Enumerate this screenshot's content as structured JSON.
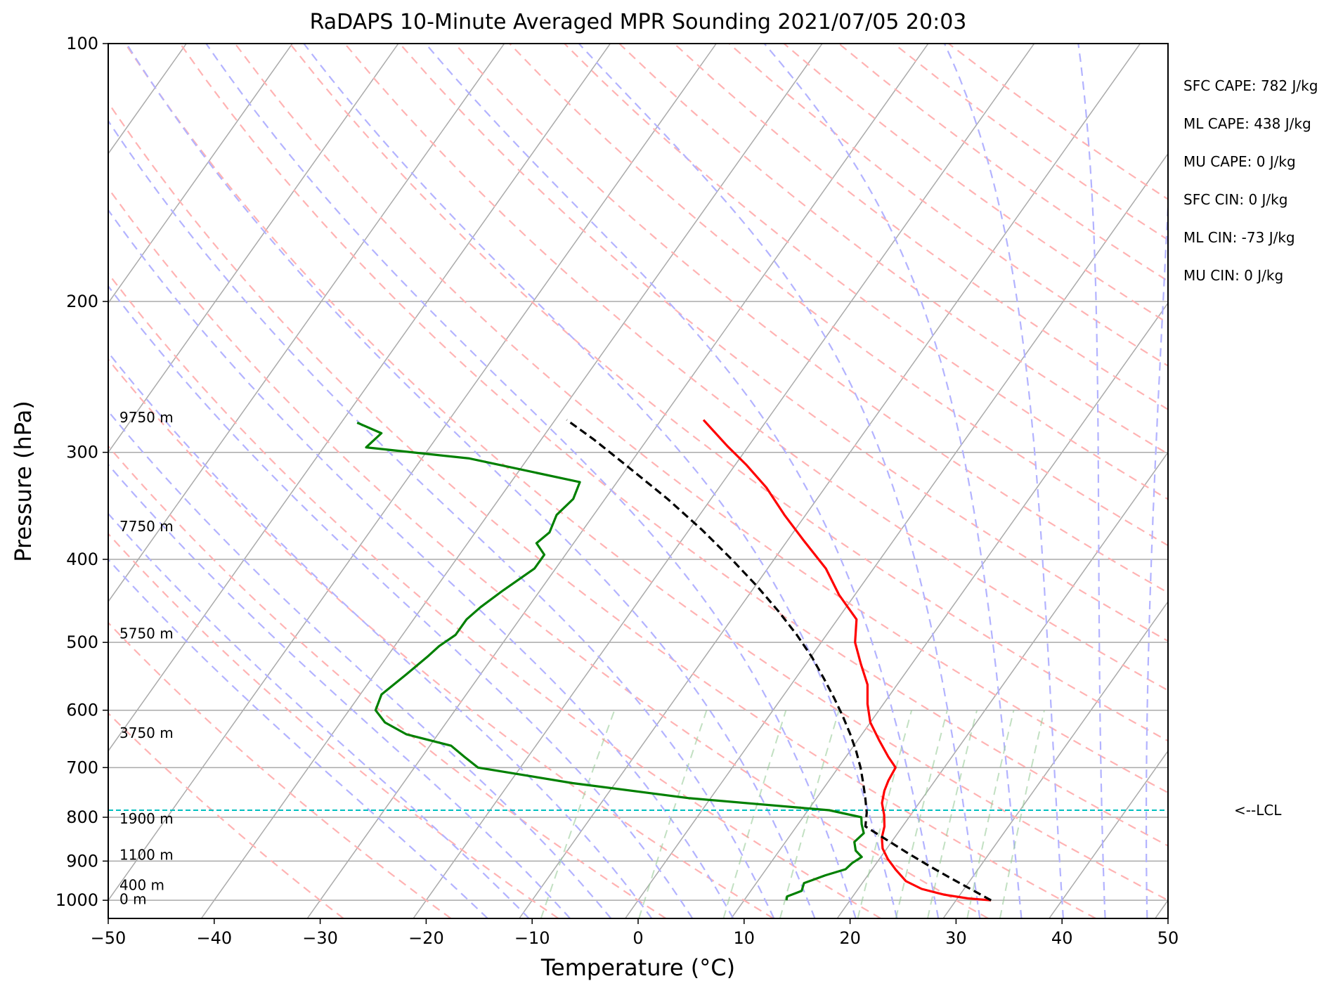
{
  "chart_data": {
    "type": "skew-t log-p sounding",
    "title": "RaDAPS 10-Minute Averaged MPR Sounding 2021/07/05 20:03",
    "xlabel": "Temperature (°C)",
    "ylabel": "Pressure (hPa)",
    "xlim": [
      -50,
      50
    ],
    "ylim": [
      1050,
      100
    ],
    "y_scale": "log",
    "x_ticks": [
      -50,
      -40,
      -30,
      -20,
      -10,
      0,
      10,
      20,
      30,
      40,
      50
    ],
    "y_ticks": [
      100,
      200,
      300,
      400,
      500,
      600,
      700,
      800,
      900,
      1000
    ],
    "grid": true,
    "height_labels": [
      {
        "text": "9750 m",
        "pressure": 273
      },
      {
        "text": "7750 m",
        "pressure": 366
      },
      {
        "text": "5750 m",
        "pressure": 488
      },
      {
        "text": "3750 m",
        "pressure": 638
      },
      {
        "text": "1900 m",
        "pressure": 803
      },
      {
        "text": "1100 m",
        "pressure": 885
      },
      {
        "text": "400 m",
        "pressure": 960
      },
      {
        "text": "0 m",
        "pressure": 997
      }
    ],
    "series": [
      {
        "kind": "temperature",
        "color": "#ff0000",
        "points": [
          [
            1000,
            33.3
          ],
          [
            995,
            31.0
          ],
          [
            985,
            28.5
          ],
          [
            970,
            26.0
          ],
          [
            950,
            24.0
          ],
          [
            920,
            22.2
          ],
          [
            895,
            20.8
          ],
          [
            870,
            19.6
          ],
          [
            845,
            18.8
          ],
          [
            820,
            18.3
          ],
          [
            795,
            17.5
          ],
          [
            770,
            16.5
          ],
          [
            745,
            15.9
          ],
          [
            725,
            15.6
          ],
          [
            700,
            15.4
          ],
          [
            680,
            14.0
          ],
          [
            650,
            12.0
          ],
          [
            620,
            10.0
          ],
          [
            590,
            8.5
          ],
          [
            560,
            7.2
          ],
          [
            530,
            5.2
          ],
          [
            500,
            3.2
          ],
          [
            470,
            1.8
          ],
          [
            440,
            -1.5
          ],
          [
            410,
            -4.5
          ],
          [
            380,
            -8.5
          ],
          [
            355,
            -12.0
          ],
          [
            330,
            -15.5
          ],
          [
            310,
            -19.0
          ],
          [
            295,
            -22.0
          ],
          [
            275,
            -26.0
          ]
        ]
      },
      {
        "kind": "dewpoint",
        "color": "#008000",
        "points": [
          [
            1000,
            14.0
          ],
          [
            990,
            13.8
          ],
          [
            975,
            14.8
          ],
          [
            955,
            14.5
          ],
          [
            935,
            16.0
          ],
          [
            920,
            17.5
          ],
          [
            905,
            17.7
          ],
          [
            890,
            18.2
          ],
          [
            875,
            17.2
          ],
          [
            855,
            16.5
          ],
          [
            835,
            16.8
          ],
          [
            815,
            16.0
          ],
          [
            800,
            15.5
          ],
          [
            785,
            12.0
          ],
          [
            760,
            -2.0
          ],
          [
            730,
            -14.0
          ],
          [
            700,
            -24.0
          ],
          [
            680,
            -26.0
          ],
          [
            660,
            -28.0
          ],
          [
            640,
            -33.0
          ],
          [
            620,
            -35.8
          ],
          [
            600,
            -37.5
          ],
          [
            575,
            -38.0
          ],
          [
            545,
            -37.0
          ],
          [
            520,
            -36.2
          ],
          [
            505,
            -35.8
          ],
          [
            490,
            -35.0
          ],
          [
            470,
            -35.0
          ],
          [
            455,
            -34.5
          ],
          [
            435,
            -33.5
          ],
          [
            410,
            -32.0
          ],
          [
            395,
            -32.0
          ],
          [
            383,
            -33.5
          ],
          [
            372,
            -33.0
          ],
          [
            355,
            -33.5
          ],
          [
            340,
            -33.0
          ],
          [
            325,
            -33.5
          ],
          [
            305,
            -45.5
          ],
          [
            296,
            -56.0
          ],
          [
            285,
            -55.5
          ],
          [
            277,
            -58.5
          ]
        ]
      },
      {
        "kind": "parcel",
        "color": "#000000",
        "points": [
          [
            1000,
            33.3
          ],
          [
            970,
            30.6
          ],
          [
            940,
            27.8
          ],
          [
            910,
            25.0
          ],
          [
            880,
            22.2
          ],
          [
            850,
            19.4
          ],
          [
            820,
            16.5
          ],
          [
            790,
            15.7
          ],
          [
            760,
            14.6
          ],
          [
            730,
            13.4
          ],
          [
            700,
            12.1
          ],
          [
            670,
            10.6
          ],
          [
            640,
            8.9
          ],
          [
            610,
            7.0
          ],
          [
            580,
            4.9
          ],
          [
            550,
            2.6
          ],
          [
            520,
            0.1
          ],
          [
            490,
            -2.8
          ],
          [
            460,
            -6.1
          ],
          [
            430,
            -9.8
          ],
          [
            400,
            -14.0
          ],
          [
            370,
            -18.7
          ],
          [
            340,
            -24.1
          ],
          [
            310,
            -30.4
          ],
          [
            290,
            -35.0
          ],
          [
            275,
            -38.9
          ]
        ]
      }
    ],
    "lcl": {
      "pressure": 785,
      "label": "<--LCL"
    },
    "stats": [
      "SFC CAPE: 782 J/kg",
      "ML CAPE: 438 J/kg",
      "MU CAPE: 0 J/kg",
      "SFC CIN: 0 J/kg",
      "ML CIN: -73 J/kg",
      "MU CIN: 0 J/kg"
    ],
    "background_lines": {
      "isotherm_color": "#aaaaaa",
      "dry_adiabat_color": "#ffb3b3",
      "moist_adiabat_color": "#b3b3ff",
      "mixing_ratio_color": "#99cc99",
      "lcl_line_color": "#00bfbf"
    }
  }
}
